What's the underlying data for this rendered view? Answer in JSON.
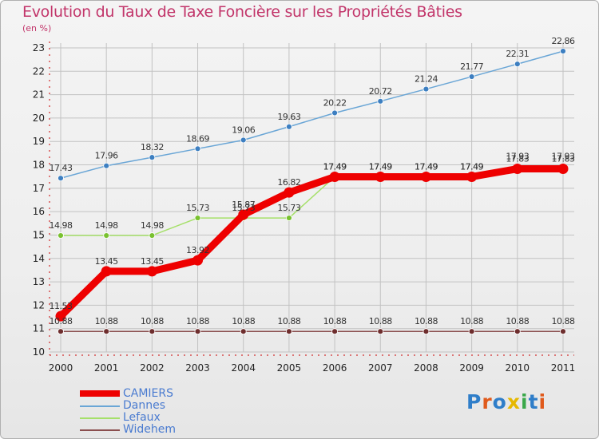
{
  "title": "Evolution du Taux de Taxe Foncière sur les Propriétés Bâties",
  "y_unit_label": "(en %)",
  "brand": {
    "text": "Proxiti",
    "letter_colors": [
      "#2f7ec9",
      "#e05a1c",
      "#2f7ec9",
      "#e6b800",
      "#3aa84a",
      "#2f7ec9",
      "#e05a1c"
    ]
  },
  "colors": {
    "title": "#c2356a",
    "axis_text": "#222222",
    "grid": "#c2c2c2",
    "axis_red": "#cc0000",
    "legend_text": "#4a7bd0"
  },
  "chart_data": {
    "type": "line",
    "title": "Evolution du Taux de Taxe Foncière sur les Propriétés Bâties",
    "ylabel": "(en %)",
    "xlabel": "",
    "x": [
      2000,
      2001,
      2002,
      2003,
      2004,
      2005,
      2006,
      2007,
      2008,
      2009,
      2010,
      2011
    ],
    "ylim": [
      10,
      23
    ],
    "yticks": [
      10,
      11,
      12,
      13,
      14,
      15,
      16,
      17,
      18,
      19,
      20,
      21,
      22,
      23
    ],
    "series": [
      {
        "name": "CAMIERS",
        "color": "#ee0000",
        "style": "thick",
        "values": [
          11.53,
          13.45,
          13.45,
          13.92,
          15.87,
          16.82,
          17.49,
          17.49,
          17.49,
          17.49,
          17.83,
          17.83
        ],
        "labels": [
          "11.53",
          "13.45",
          "13.45",
          "13.92",
          "15.87",
          "16.82",
          "17.49",
          "17.49",
          "17.49",
          "17.49",
          "17.83",
          "17.83"
        ]
      },
      {
        "name": "Dannes",
        "color": "#6aa6d6",
        "marker": "#3d7fc1",
        "style": "thin",
        "values": [
          17.43,
          17.96,
          18.32,
          18.69,
          19.06,
          19.63,
          20.22,
          20.72,
          21.24,
          21.77,
          22.31,
          22.86
        ],
        "labels": [
          "17.43",
          "17.96",
          "18.32",
          "18.69",
          "19.06",
          "19.63",
          "20.22",
          "20.72",
          "21.24",
          "21.77",
          "22.31",
          "22.86"
        ]
      },
      {
        "name": "Lefaux",
        "color": "#a6e06a",
        "marker": "#79c12f",
        "style": "thin",
        "values": [
          14.98,
          14.98,
          14.98,
          15.73,
          15.73,
          15.73,
          17.49,
          17.49,
          17.49,
          17.49,
          17.93,
          17.93
        ],
        "labels": [
          "14.98",
          "14.98",
          "14.98",
          "15.73",
          "15.73",
          "15.73",
          "17.49",
          "17.49",
          "17.49",
          "17.49",
          "17.93",
          "17.93"
        ]
      },
      {
        "name": "Widehem",
        "color": "#8a4e4e",
        "marker": "#6e2e2e",
        "style": "thin",
        "values": [
          10.88,
          10.88,
          10.88,
          10.88,
          10.88,
          10.88,
          10.88,
          10.88,
          10.88,
          10.88,
          10.88,
          10.88
        ],
        "labels": [
          "10.88",
          "10.88",
          "10.88",
          "10.88",
          "10.88",
          "10.88",
          "10.88",
          "10.88",
          "10.88",
          "10.88",
          "10.88",
          "10.88"
        ]
      }
    ]
  }
}
